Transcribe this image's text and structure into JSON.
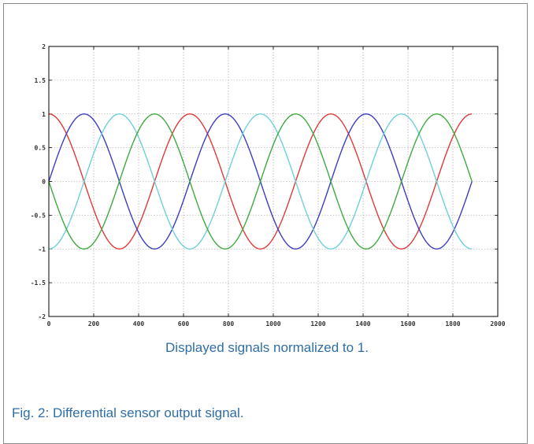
{
  "caption": "Displayed signals normalized to 1.",
  "figure_label": "Fig. 2: Differential sensor output signal.",
  "chart_data": {
    "type": "line",
    "title": "",
    "xlabel": "",
    "ylabel": "",
    "xlim": [
      0,
      2000
    ],
    "ylim": [
      -2,
      2
    ],
    "xticks": [
      "0",
      "200",
      "400",
      "600",
      "800",
      "1000",
      "1200",
      "1400",
      "1600",
      "1800",
      "2000"
    ],
    "yticks": [
      "2",
      "1.5",
      "1",
      "0.5",
      "0",
      "-0.5",
      "-1",
      "-1.5",
      "-2"
    ],
    "grid": true,
    "x_range_of_data": [
      0,
      1885
    ],
    "period": 628.3,
    "series": [
      {
        "color": "#e03a3a",
        "function": "cos",
        "amplitude": 1,
        "phase": 0
      },
      {
        "color": "#3d3dc0",
        "function": "sin",
        "amplitude": 1,
        "phase": 0
      },
      {
        "color": "#6fd0d8",
        "function": "-cos",
        "amplitude": 1,
        "phase": 0
      },
      {
        "color": "#3faa3f",
        "function": "-sin",
        "amplitude": 1,
        "phase": 0
      }
    ]
  }
}
